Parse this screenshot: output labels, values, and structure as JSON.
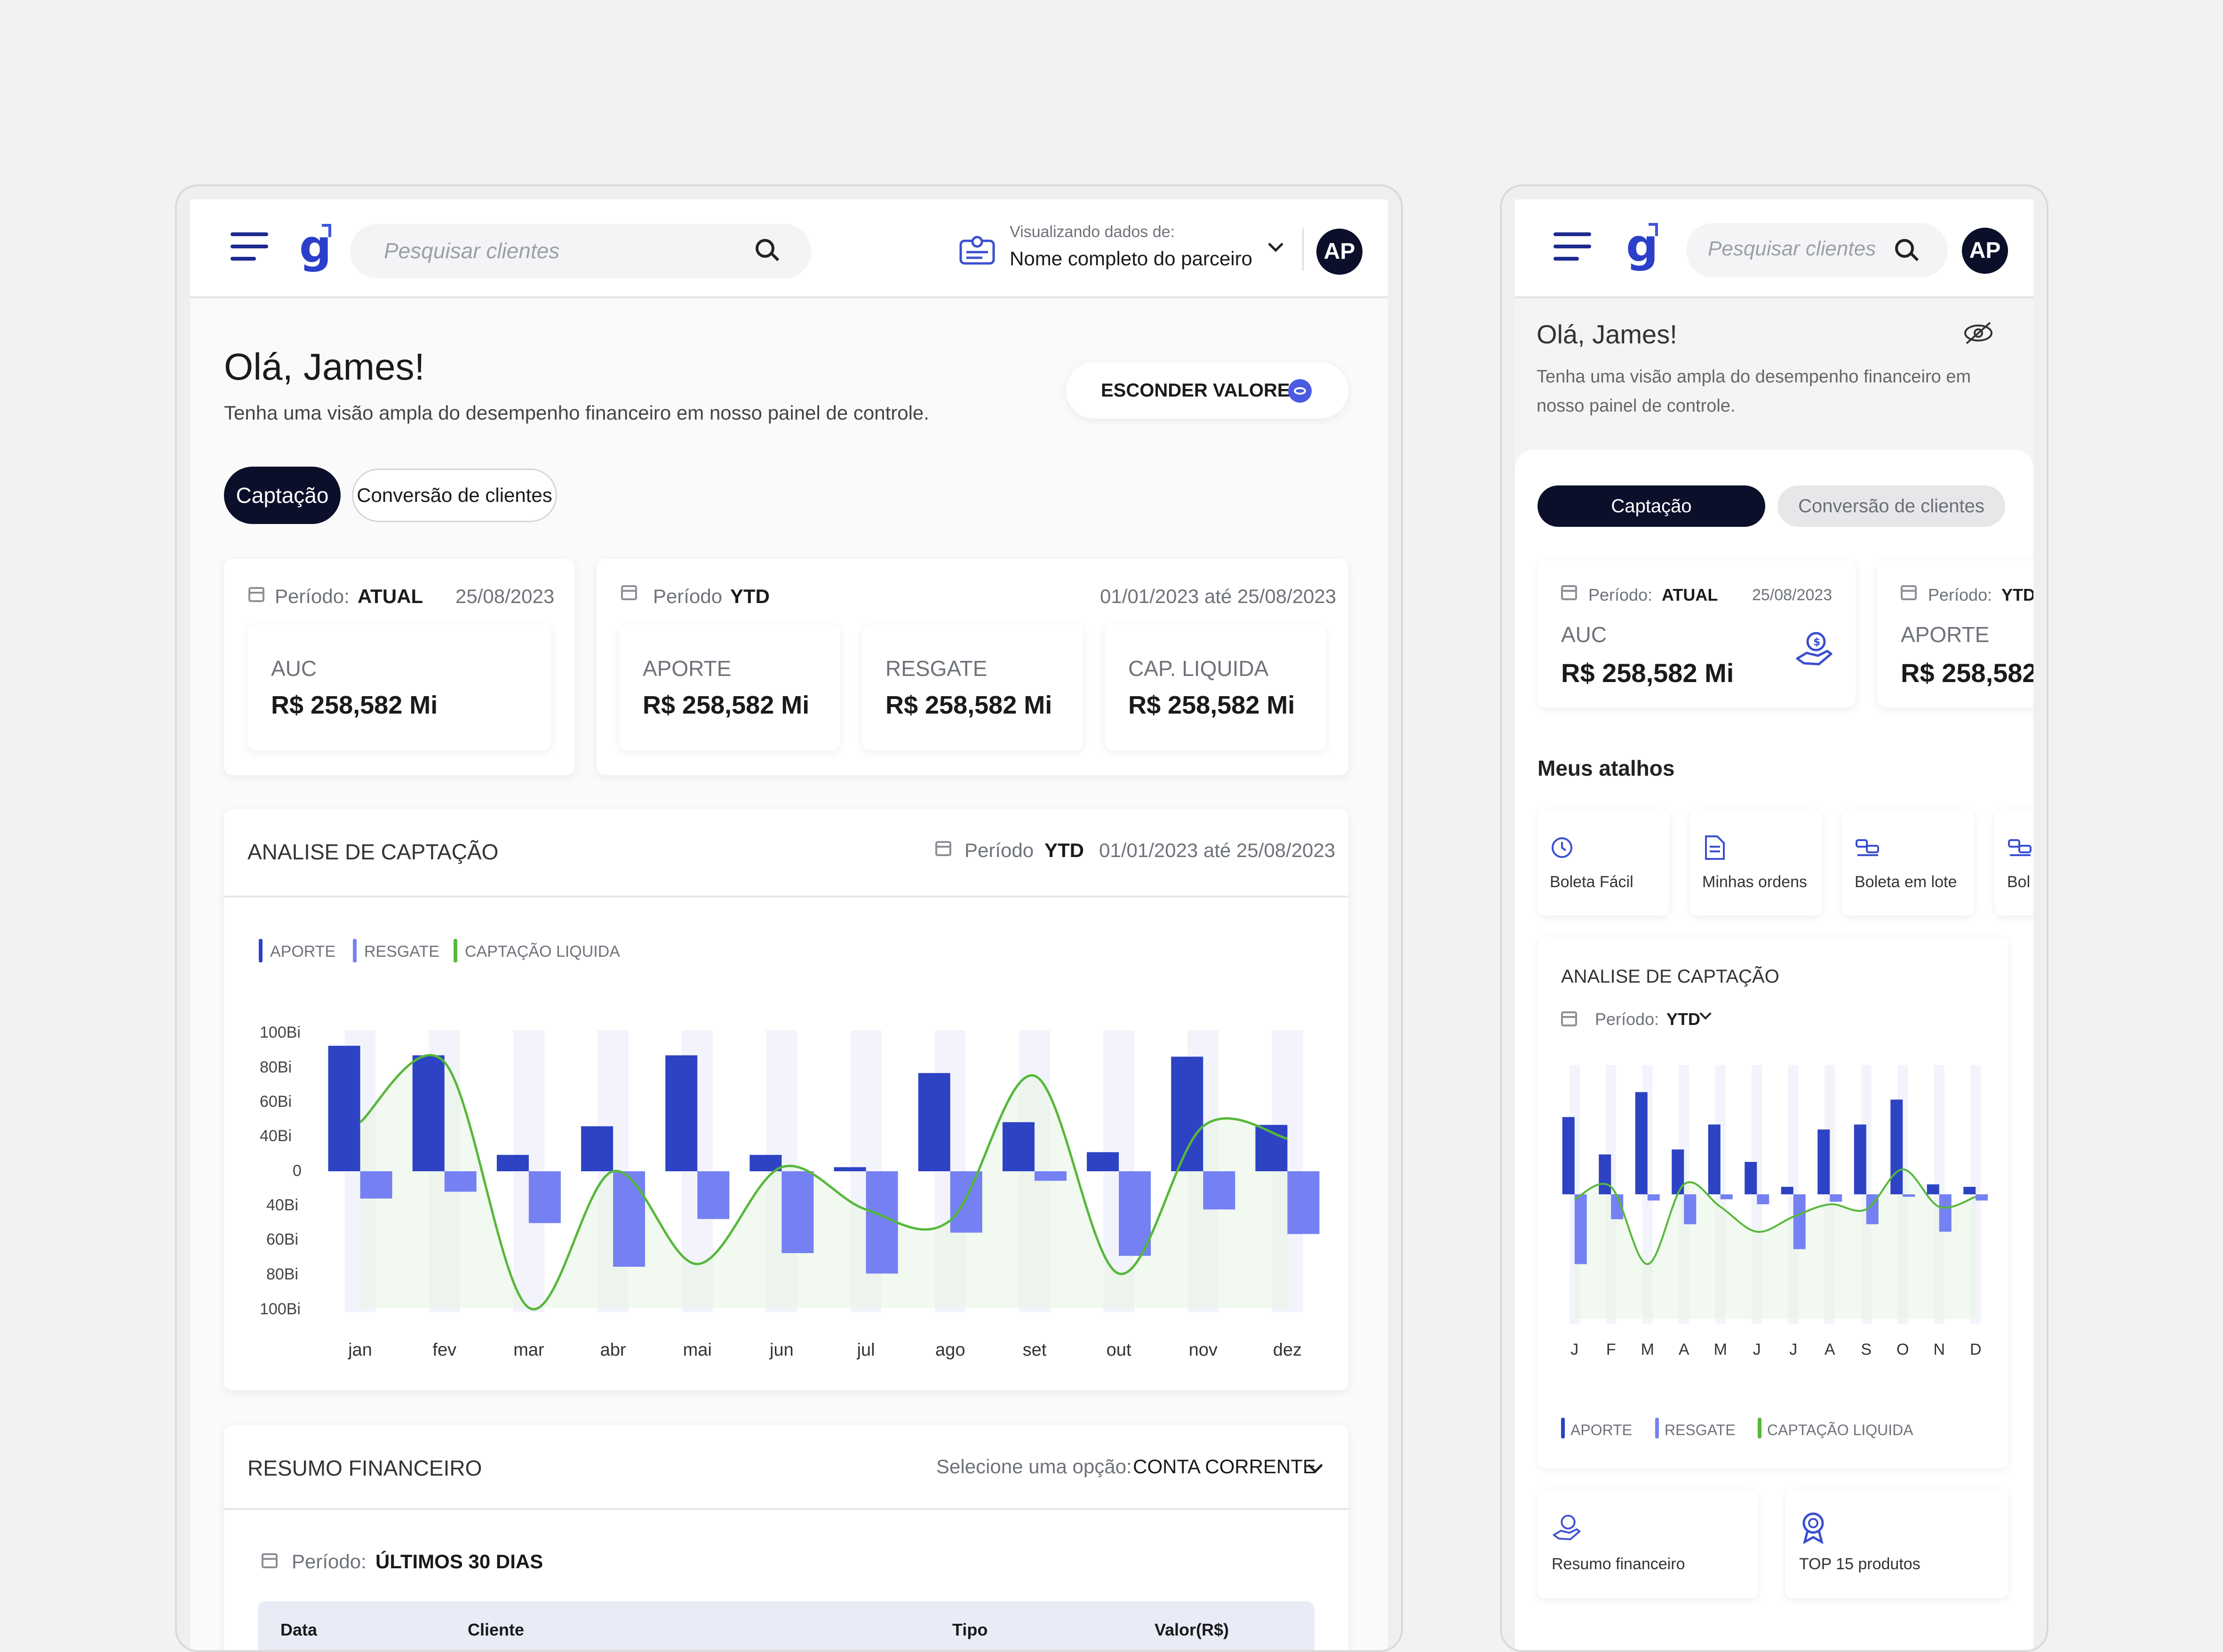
{
  "tablet": {
    "header": {
      "search_placeholder": "Pesquisar clientes",
      "viewing_label": "Visualizando dados de:",
      "partner_name": "Nome completo do parceiro",
      "avatar": "AP"
    },
    "greeting": "Olá, James!",
    "subtitle": "Tenha uma visão ampla do desempenho financeiro em nosso painel de controle.",
    "hide_values_button": "ESCONDER VALORES",
    "tabs": [
      {
        "label": "Captação",
        "active": true
      },
      {
        "label": "Conversão de clientes",
        "active": false
      }
    ],
    "period_current": {
      "label": "Período:",
      "value": "ATUAL",
      "date": "25/08/2023",
      "metric_label": "AUC",
      "metric_value": "R$ 258,582 Mi"
    },
    "period_ytd": {
      "label": "Período",
      "value": "YTD",
      "date": "01/01/2023 até 25/08/2023",
      "metrics": [
        {
          "label": "APORTE",
          "value": "R$ 258,582 Mi"
        },
        {
          "label": "RESGATE",
          "value": "R$ 258,582 Mi"
        },
        {
          "label": "CAP. LIQUIDA",
          "value": "R$ 258,582 Mi"
        }
      ]
    },
    "analysis": {
      "title": "ANALISE DE CAPTAÇÃO",
      "period_label": "Período",
      "period_value": "YTD",
      "period_dates": "01/01/2023 até 25/08/2023",
      "legend": [
        "APORTE",
        "RESGATE",
        "CAPTAÇÃO LIQUIDA"
      ],
      "y_ticks": [
        "100Bi",
        "80Bi",
        "60Bi",
        "40Bi",
        "0",
        "40Bi",
        "60Bi",
        "80Bi",
        "100Bi"
      ]
    },
    "summary": {
      "title": "RESUMO FINANCEIRO",
      "select_label": "Selecione uma opção:",
      "select_value": "CONTA CORRENTE",
      "period_label": "Período:",
      "period_value": "ÚLTIMOS 30 DIAS",
      "columns": [
        "Data",
        "Cliente",
        "Tipo",
        "Valor(R$)"
      ]
    }
  },
  "phone": {
    "header": {
      "search_placeholder": "Pesquisar clientes",
      "avatar": "AP"
    },
    "greeting": "Olá, James!",
    "subtitle": "Tenha uma visão ampla do desempenho financeiro em nosso painel de controle.",
    "tabs": [
      {
        "label": "Captação",
        "active": true
      },
      {
        "label": "Conversão de clientes",
        "active": false
      }
    ],
    "card_current": {
      "label": "Período:",
      "value": "ATUAL",
      "date": "25/08/2023",
      "metric_label": "AUC",
      "metric_value": "R$ 258,582 Mi"
    },
    "card_ytd": {
      "label": "Período:",
      "value": "YTD",
      "metric_label": "APORTE",
      "metric_value": "R$ 258,582"
    },
    "shortcuts_title": "Meus atalhos",
    "shortcuts": [
      "Boleta Fácil",
      "Minhas ordens",
      "Boleta em lote",
      "Bol"
    ],
    "analysis": {
      "title": "ANALISE DE CAPTAÇÃO",
      "period_label": "Período:",
      "period_value": "YTD",
      "legend": [
        "APORTE",
        "RESGATE",
        "CAPTAÇÃO LIQUIDA"
      ]
    },
    "bottom_shortcuts": [
      "Resumo financeiro",
      "TOP 15 produtos"
    ]
  },
  "colors": {
    "aporte": "#2d43c3",
    "resgate": "#7581f2",
    "liquida": "#56b83a",
    "dark": "#0b0f2a"
  },
  "chart_data": [
    {
      "type": "bar",
      "categories": [
        "jan",
        "fev",
        "mar",
        "abr",
        "mai",
        "jun",
        "jul",
        "ago",
        "set",
        "out",
        "nov",
        "dez"
      ],
      "series": [
        {
          "name": "APORTE",
          "values": [
            92,
            85,
            12,
            33,
            85,
            12,
            3,
            72,
            36,
            14,
            84,
            34
          ]
        },
        {
          "name": "RESGATE",
          "values": [
            -20,
            -15,
            -38,
            -70,
            -35,
            -60,
            -75,
            -45,
            -7,
            -62,
            -28,
            -46
          ]
        },
        {
          "name": "CAPTAÇÃO LIQUIDA",
          "values": [
            36,
            80,
            -100,
            0,
            -68,
            3,
            -28,
            -36,
            70,
            -75,
            33,
            24
          ]
        }
      ],
      "ylim": [
        -100,
        100
      ],
      "legend": "top-left"
    },
    {
      "type": "bar",
      "categories": [
        "J",
        "F",
        "M",
        "A",
        "M",
        "J",
        "J",
        "A",
        "S",
        "O",
        "N",
        "D"
      ],
      "series": [
        {
          "name": "APORTE",
          "values": [
            62,
            32,
            82,
            36,
            56,
            26,
            6,
            52,
            56,
            76,
            8,
            6
          ]
        },
        {
          "name": "RESGATE",
          "values": [
            -56,
            -20,
            -5,
            -24,
            -4,
            -8,
            -44,
            -6,
            -24,
            -2,
            -30,
            -5
          ]
        },
        {
          "name": "CAPTAÇÃO LIQUIDA",
          "values": [
            -4,
            6,
            -56,
            8,
            -10,
            -30,
            -18,
            -8,
            -12,
            20,
            -10,
            -2
          ]
        }
      ],
      "ylim": [
        -100,
        100
      ],
      "legend": "bottom-left"
    }
  ]
}
